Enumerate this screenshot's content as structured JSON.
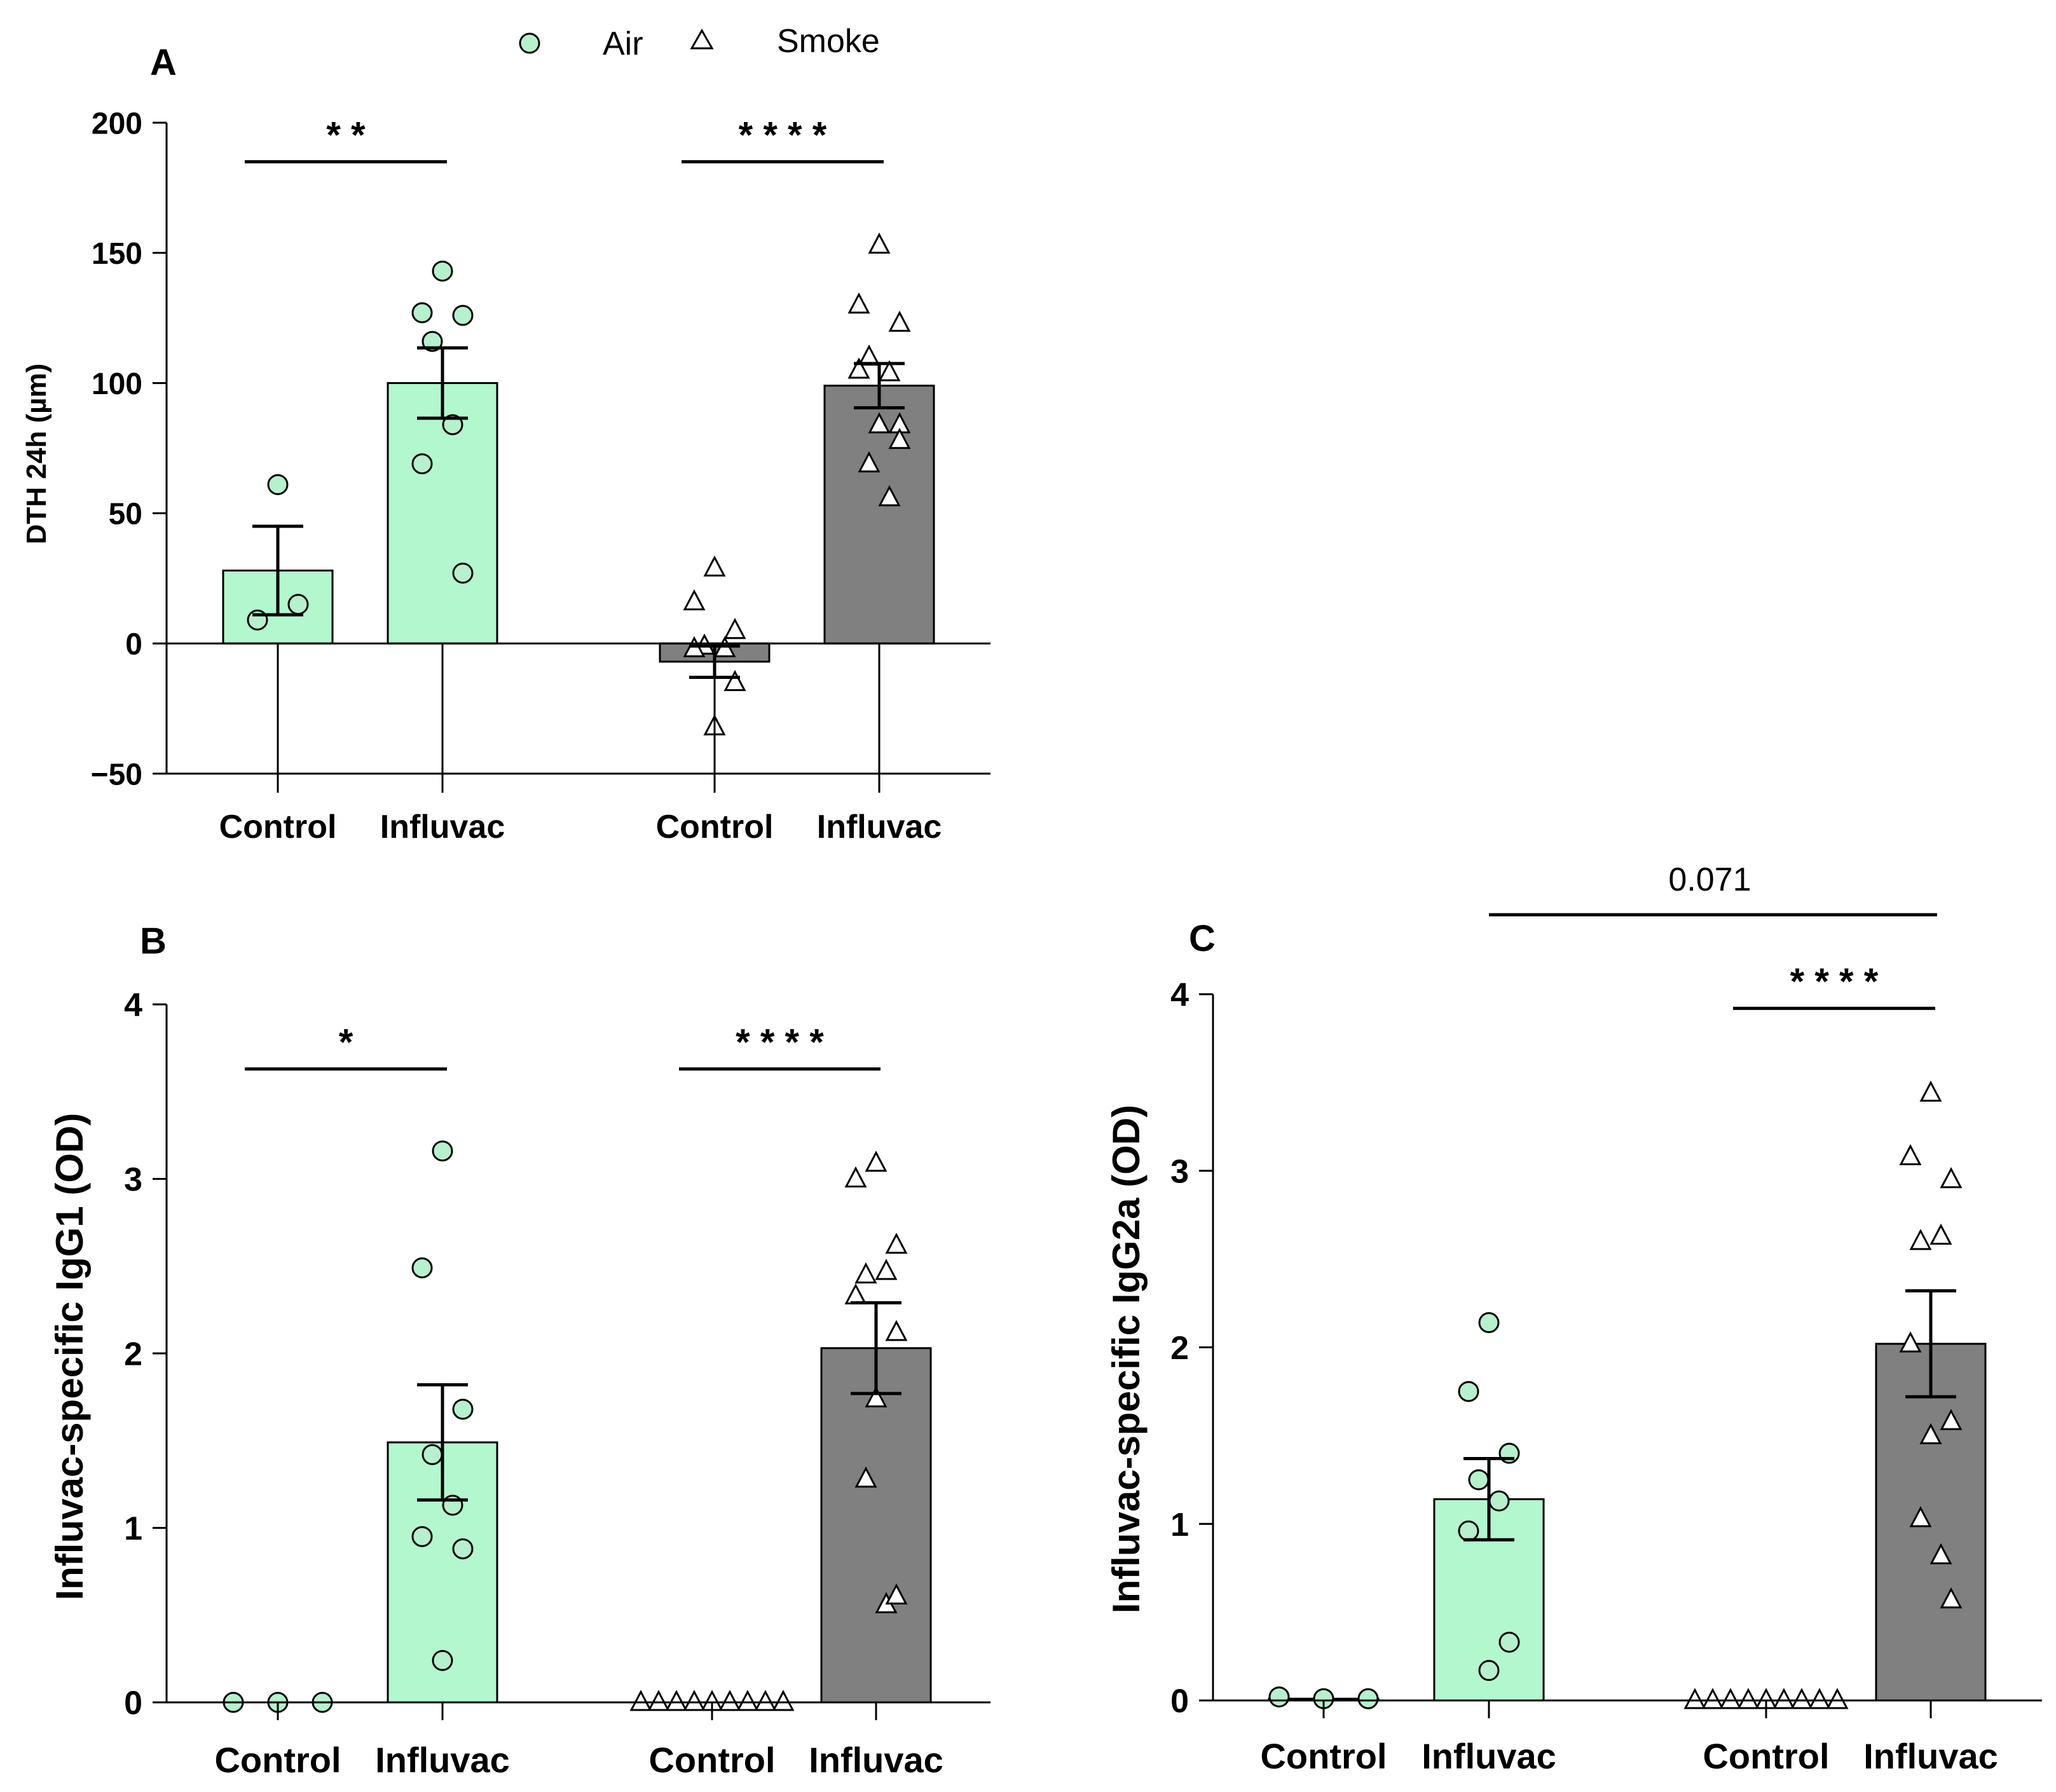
{
  "legend": {
    "position": "top-center",
    "entries": [
      {
        "name": "Air",
        "marker": "circle",
        "fill": "#b6f0cd"
      },
      {
        "name": "Smoke",
        "marker": "triangle",
        "fill": "#ffffff"
      }
    ]
  },
  "colors": {
    "air_bar": "#b3f7cf",
    "smoke_bar": "#808080",
    "air_marker": "#b6f0cd",
    "axis": "#000000"
  },
  "chart_data": [
    {
      "panel": "A",
      "type": "bar",
      "ylabel": "DTH 24h (µm)",
      "ylim": [
        -50,
        200
      ],
      "yticks": [
        -50,
        0,
        50,
        100,
        150,
        200
      ],
      "ytick_labels": [
        "−50",
        "0",
        "50",
        "100",
        "150",
        "200"
      ],
      "categories": [
        "Control",
        "Influvac",
        "Control",
        "Influvac"
      ],
      "groups": [
        "Air",
        "Air",
        "Smoke",
        "Smoke"
      ],
      "means": [
        28,
        100,
        -7,
        99
      ],
      "sem": [
        17,
        13.5,
        6,
        8.5
      ],
      "points": [
        [
          61,
          9,
          15
        ],
        [
          143,
          127,
          126,
          116,
          84,
          69,
          27
        ],
        [
          29,
          16,
          5,
          -1,
          -2,
          -2,
          -15,
          -32
        ],
        [
          153,
          130,
          123,
          110,
          104,
          105,
          84,
          84,
          69,
          56,
          78
        ]
      ],
      "significance": [
        {
          "from": 0,
          "to": 1,
          "label": "* *",
          "y": 185
        },
        {
          "from": 2,
          "to": 3,
          "label": "* * * *",
          "y": 185
        }
      ]
    },
    {
      "panel": "B",
      "type": "bar",
      "ylabel": "Influvac-specific IgG1 (OD)",
      "ylim": [
        0,
        4
      ],
      "yticks": [
        0,
        1,
        2,
        3,
        4
      ],
      "ytick_labels": [
        "0",
        "1",
        "2",
        "3",
        "4"
      ],
      "categories": [
        "Control",
        "Influvac",
        "Control",
        "Influvac"
      ],
      "groups": [
        "Air",
        "Air",
        "Smoke",
        "Smoke"
      ],
      "means": [
        0,
        1.49,
        0,
        2.03
      ],
      "sem": [
        0,
        0.33,
        0,
        0.26
      ],
      "points": [
        [
          0,
          0,
          0
        ],
        [
          3.16,
          2.49,
          1.68,
          1.42,
          1.13,
          0.95,
          0.88,
          0.24
        ],
        [
          0,
          0,
          0,
          0,
          0,
          0,
          0,
          0,
          0
        ],
        [
          3.09,
          3.0,
          2.62,
          2.45,
          2.47,
          2.33,
          2.12,
          1.74,
          1.28,
          0.56,
          0.61
        ]
      ],
      "significance": [
        {
          "from": 0,
          "to": 1,
          "label": "*",
          "y": 3.63
        },
        {
          "from": 2,
          "to": 3,
          "label": "* * * *",
          "y": 3.63
        }
      ]
    },
    {
      "panel": "C",
      "type": "bar",
      "ylabel": "Influvac-specific IgG2a (OD)",
      "ylim": [
        0,
        4
      ],
      "yticks": [
        0,
        1,
        2,
        3,
        4
      ],
      "ytick_labels": [
        "0",
        "1",
        "2",
        "3",
        "4"
      ],
      "categories": [
        "Control",
        "Influvac",
        "Control",
        "Influvac"
      ],
      "groups": [
        "Air",
        "Air",
        "Smoke",
        "Smoke"
      ],
      "means": [
        0.01,
        1.14,
        0,
        2.02
      ],
      "sem": [
        0,
        0.23,
        0,
        0.3
      ],
      "points": [
        [
          0.02,
          0.01,
          0.01
        ],
        [
          2.14,
          1.75,
          1.4,
          1.25,
          1.13,
          0.96,
          0.33,
          0.17
        ],
        [
          0,
          0,
          0,
          0,
          0,
          0,
          0,
          0,
          0
        ],
        [
          3.44,
          3.08,
          2.95,
          2.6,
          2.63,
          2.02,
          1.58,
          1.5,
          1.03,
          0.82,
          0.57
        ]
      ],
      "significance": [
        {
          "from": 2,
          "to": 3,
          "label": "* * * *",
          "y": 3.92
        },
        {
          "from": 1,
          "to": 3,
          "label": "0.071",
          "y": 4.45
        }
      ]
    }
  ]
}
